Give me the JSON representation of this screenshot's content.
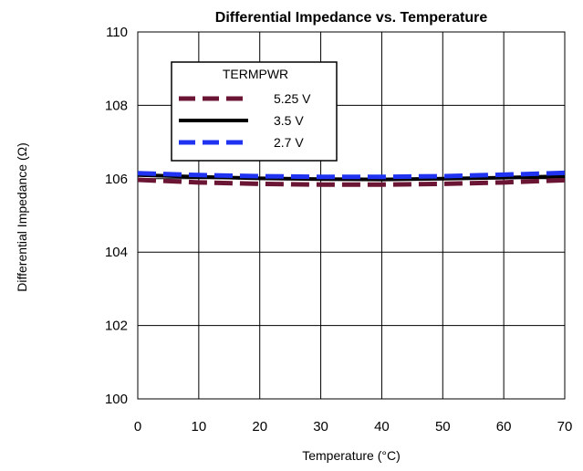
{
  "chart_data": {
    "type": "line",
    "title": "Differential Impedance vs. Temperature",
    "xlabel": "Temperature (°C)",
    "ylabel": "Differential Impedance (Ω)",
    "xlim": [
      0,
      70
    ],
    "ylim": [
      100,
      110
    ],
    "xticks": [
      0,
      10,
      20,
      30,
      40,
      50,
      60,
      70
    ],
    "yticks": [
      100,
      102,
      104,
      106,
      108,
      110
    ],
    "grid": true,
    "legend": {
      "title": "TERMPWR",
      "placement": "top-left"
    },
    "series": [
      {
        "name": "5.25 V",
        "color": "#6b1535",
        "style": "dashed",
        "x": [
          0,
          10,
          20,
          30,
          40,
          50,
          60,
          70
        ],
        "y": [
          105.97,
          105.9,
          105.86,
          105.84,
          105.84,
          105.86,
          105.9,
          105.96
        ]
      },
      {
        "name": "3.5 V",
        "color": "#000000",
        "style": "solid",
        "x": [
          0,
          10,
          20,
          30,
          40,
          50,
          60,
          70
        ],
        "y": [
          106.1,
          106.05,
          106.01,
          105.99,
          105.98,
          106.0,
          106.03,
          106.07
        ]
      },
      {
        "name": "2.7 V",
        "color": "#1f33f0",
        "style": "dashed",
        "x": [
          0,
          10,
          20,
          30,
          40,
          50,
          60,
          70
        ],
        "y": [
          106.15,
          106.1,
          106.07,
          106.05,
          106.05,
          106.07,
          106.11,
          106.16
        ]
      }
    ]
  }
}
